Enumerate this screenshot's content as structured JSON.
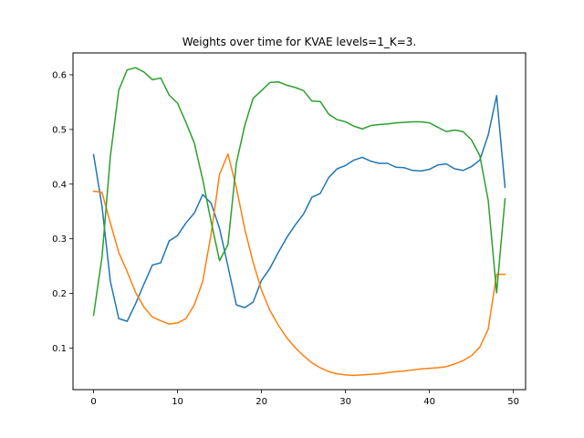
{
  "chart_data": {
    "type": "line",
    "title": "Weights over time for KVAE levels=1_K=3.",
    "xlabel": "",
    "ylabel": "",
    "xlim": [
      -2.45,
      51.45
    ],
    "ylim": [
      0.024,
      0.64
    ],
    "xticks": [
      0,
      10,
      20,
      30,
      40,
      50
    ],
    "yticks": [
      0.1,
      0.2,
      0.3,
      0.4,
      0.5,
      0.6
    ],
    "xtick_labels": [
      "0",
      "10",
      "20",
      "30",
      "40",
      "50"
    ],
    "ytick_labels": [
      "0.1",
      "0.2",
      "0.3",
      "0.4",
      "0.5",
      "0.6"
    ],
    "grid": false,
    "x": [
      0,
      1,
      2,
      3,
      4,
      5,
      6,
      7,
      8,
      9,
      10,
      11,
      12,
      13,
      14,
      15,
      16,
      17,
      18,
      19,
      20,
      21,
      22,
      23,
      24,
      25,
      26,
      27,
      28,
      29,
      30,
      31,
      32,
      33,
      34,
      35,
      36,
      37,
      38,
      39,
      40,
      41,
      42,
      43,
      44,
      45,
      46,
      47,
      48,
      49
    ],
    "series": [
      {
        "color": "#1f77b4",
        "values": [
          0.454,
          0.36,
          0.222,
          0.154,
          0.149,
          0.181,
          0.217,
          0.252,
          0.256,
          0.296,
          0.306,
          0.329,
          0.347,
          0.381,
          0.365,
          0.319,
          0.25,
          0.179,
          0.174,
          0.184,
          0.224,
          0.246,
          0.275,
          0.302,
          0.325,
          0.345,
          0.376,
          0.383,
          0.412,
          0.428,
          0.434,
          0.444,
          0.449,
          0.442,
          0.438,
          0.438,
          0.431,
          0.43,
          0.425,
          0.424,
          0.427,
          0.435,
          0.437,
          0.428,
          0.425,
          0.432,
          0.444,
          0.49,
          0.562,
          0.394
        ]
      },
      {
        "color": "#ff7f0e",
        "values": [
          0.387,
          0.385,
          0.329,
          0.275,
          0.24,
          0.202,
          0.175,
          0.157,
          0.15,
          0.144,
          0.146,
          0.154,
          0.179,
          0.222,
          0.309,
          0.418,
          0.455,
          0.394,
          0.318,
          0.257,
          0.206,
          0.169,
          0.142,
          0.119,
          0.101,
          0.086,
          0.073,
          0.064,
          0.057,
          0.053,
          0.051,
          0.05,
          0.051,
          0.052,
          0.053,
          0.055,
          0.057,
          0.058,
          0.06,
          0.062,
          0.063,
          0.064,
          0.066,
          0.071,
          0.077,
          0.086,
          0.102,
          0.135,
          0.235,
          0.235
        ]
      },
      {
        "color": "#2ca02c",
        "values": [
          0.16,
          0.266,
          0.451,
          0.572,
          0.609,
          0.613,
          0.605,
          0.591,
          0.594,
          0.563,
          0.548,
          0.513,
          0.475,
          0.408,
          0.331,
          0.26,
          0.289,
          0.438,
          0.507,
          0.557,
          0.571,
          0.586,
          0.587,
          0.581,
          0.577,
          0.571,
          0.552,
          0.551,
          0.528,
          0.518,
          0.514,
          0.506,
          0.501,
          0.507,
          0.509,
          0.51,
          0.512,
          0.513,
          0.514,
          0.514,
          0.512,
          0.504,
          0.496,
          0.499,
          0.496,
          0.481,
          0.452,
          0.37,
          0.201,
          0.373
        ]
      }
    ]
  }
}
